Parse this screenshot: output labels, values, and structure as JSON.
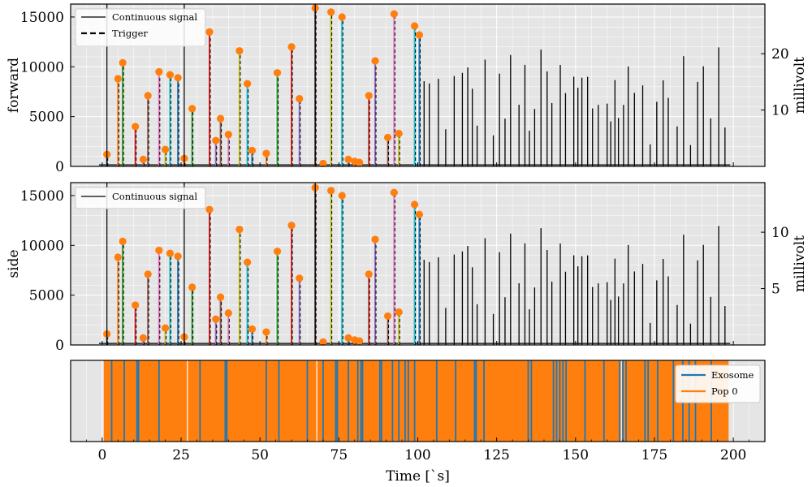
{
  "colors": {
    "panel_bg": "#e5e5e5",
    "grid": "#ffffff",
    "signal": "#000000",
    "peak_marker": "#ff7f0e",
    "exosome": "#1f77b4",
    "pop0": "#ff7f0e",
    "segment_palette": [
      "#1f77b4",
      "#ff7f0e",
      "#2ca02c",
      "#d62728",
      "#9467bd",
      "#8c564b",
      "#e377c2",
      "#bcbd22",
      "#17becf"
    ]
  },
  "chart_data": [
    {
      "type": "line",
      "ylabel": "forward",
      "ylabel_right": "millivolt",
      "xlim": [
        -10,
        210
      ],
      "ylim": [
        0,
        16300
      ],
      "yticks": [
        0,
        5000,
        10000,
        15000
      ],
      "yticks_right": [
        10,
        20
      ],
      "right_scale_max": 28.8,
      "grid": true,
      "legend_position": "upper left",
      "legend": [
        {
          "label": "Continuous signal",
          "style": "solid"
        },
        {
          "label": "Trigger",
          "style": "dashed"
        }
      ],
      "peaks_x": [
        1.5,
        5,
        6.5,
        10.5,
        13,
        14.5,
        18,
        20,
        21.5,
        24,
        26,
        28.5,
        34,
        36,
        37.5,
        40,
        43.5,
        46,
        47.5,
        52,
        55.5,
        60,
        62.5,
        67.5,
        70,
        72.5,
        76,
        78,
        80,
        81.5,
        84.5,
        86.5,
        90.5,
        92.5,
        94,
        99,
        100.5
      ],
      "peaks_y": [
        1200,
        8800,
        10400,
        4000,
        700,
        7100,
        9500,
        1700,
        9200,
        8900,
        800,
        5800,
        13500,
        2600,
        4800,
        3200,
        11600,
        8300,
        1600,
        1300,
        9400,
        12000,
        6800,
        15900,
        300,
        15500,
        15000,
        700,
        500,
        400,
        7100,
        10600,
        2900,
        15300,
        3300,
        14100,
        13200
      ]
    },
    {
      "type": "line",
      "ylabel": "side",
      "ylabel_right": "millivolt",
      "xlim": [
        -10,
        210
      ],
      "ylim": [
        0,
        16300
      ],
      "yticks": [
        0,
        5000,
        10000,
        15000
      ],
      "yticks_right": [
        5,
        10
      ],
      "right_scale_max": 14.4,
      "grid": true,
      "legend_position": "upper left",
      "legend": [
        {
          "label": "Continuous signal",
          "style": "solid"
        }
      ],
      "peaks_x": [
        1.5,
        5,
        6.5,
        10.5,
        13,
        14.5,
        18,
        20,
        21.5,
        24,
        26,
        28.5,
        34,
        36,
        37.5,
        40,
        43.5,
        46,
        47.5,
        52,
        55.5,
        60,
        62.5,
        67.5,
        70,
        72.5,
        76,
        78,
        80,
        81.5,
        84.5,
        86.5,
        90.5,
        92.5,
        94,
        99,
        100.5
      ],
      "peaks_y": [
        1100,
        8800,
        10400,
        4000,
        700,
        7100,
        9500,
        1700,
        9200,
        8900,
        800,
        5800,
        13600,
        2600,
        4800,
        3200,
        11600,
        8300,
        1600,
        1300,
        9400,
        12000,
        6700,
        15800,
        300,
        15500,
        15000,
        700,
        500,
        400,
        7100,
        10600,
        2900,
        15300,
        3300,
        14100,
        13100
      ]
    },
    {
      "type": "area",
      "xlabel": "Time [`s]",
      "xlim": [
        -10,
        210
      ],
      "xticks": [
        0,
        25,
        50,
        75,
        100,
        125,
        150,
        175,
        200
      ],
      "grid": true,
      "legend_position": "upper right",
      "series": [
        {
          "name": "Exosome",
          "x": [
            3,
            7,
            11,
            11.5,
            18,
            31,
            39,
            39.5,
            52,
            56,
            65,
            70,
            74,
            74.5,
            78,
            81,
            82,
            82.5,
            88,
            88.5,
            92,
            94,
            96,
            97,
            99,
            106,
            112,
            118,
            118.5,
            121,
            135,
            136,
            143,
            144,
            145,
            146,
            147,
            153,
            159,
            164,
            165,
            166,
            172,
            173,
            176,
            181,
            184,
            186,
            188,
            193
          ]
        },
        {
          "name": "Pop 0",
          "x_range": [
            0.5,
            198.5
          ]
        }
      ]
    }
  ]
}
